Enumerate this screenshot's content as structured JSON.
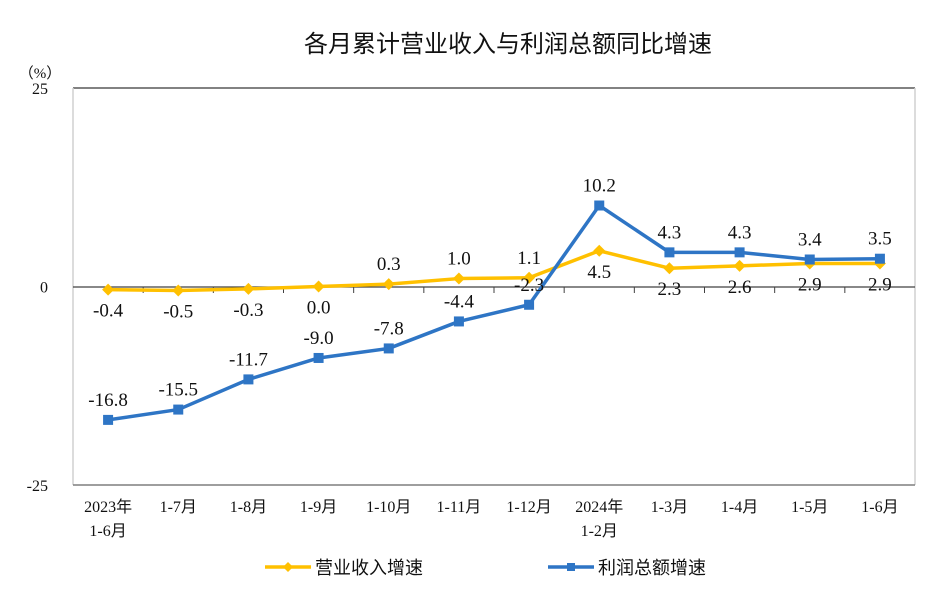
{
  "chart_data": {
    "type": "line",
    "title": "各月累计营业收入与利润总额同比增速",
    "ylabel": "（%）",
    "xlabel": "",
    "ylim": [
      -25,
      25
    ],
    "yticks": [
      "25",
      "0",
      "-25"
    ],
    "ytick_values": [
      25,
      0,
      -25
    ],
    "categories": [
      [
        "2023年",
        "1-6月"
      ],
      [
        "1-7月"
      ],
      [
        "1-8月"
      ],
      [
        "1-9月"
      ],
      [
        "1-10月"
      ],
      [
        "1-11月"
      ],
      [
        "1-12月"
      ],
      [
        "2024年",
        "1-2月"
      ],
      [
        "1-3月"
      ],
      [
        "1-4月"
      ],
      [
        "1-5月"
      ],
      [
        "1-6月"
      ]
    ],
    "series": [
      {
        "name": "营业收入增速",
        "color": "#FFC000",
        "marker": "diamond",
        "values": [
          -0.4,
          -0.5,
          -0.3,
          0.0,
          0.3,
          1.0,
          1.1,
          4.5,
          2.3,
          2.6,
          2.9,
          2.9
        ],
        "labels": [
          "-0.4",
          "-0.5",
          "-0.3",
          "0.0",
          "0.3",
          "1.0",
          "1.1",
          "4.5",
          "2.3",
          "2.6",
          "2.9",
          "2.9"
        ],
        "label_pos": [
          "below",
          "below",
          "below",
          "below",
          "above",
          "above",
          "above",
          "below",
          "below",
          "below",
          "below",
          "below"
        ]
      },
      {
        "name": "利润总额增速",
        "color": "#2E75C5",
        "marker": "square",
        "values": [
          -16.8,
          -15.5,
          -11.7,
          -9.0,
          -7.8,
          -4.4,
          -2.3,
          10.2,
          4.3,
          4.3,
          3.4,
          3.5
        ],
        "labels": [
          "-16.8",
          "-15.5",
          "-11.7",
          "-9.0",
          "-7.8",
          "-4.4",
          "-2.3",
          "10.2",
          "4.3",
          "4.3",
          "3.4",
          "3.5"
        ],
        "label_pos": [
          "above",
          "above",
          "above",
          "above",
          "above",
          "above",
          "above",
          "above",
          "above",
          "above",
          "above",
          "above"
        ]
      }
    ],
    "grid": false,
    "legend": "bottom"
  }
}
